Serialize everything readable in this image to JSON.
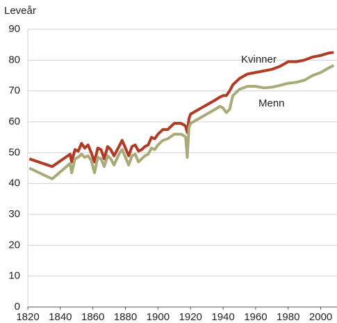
{
  "chart_data": {
    "type": "line",
    "y_label": "Leveår",
    "x": [
      1821,
      1835,
      1846,
      1847,
      1849,
      1851,
      1853,
      1855,
      1857,
      1859,
      1861,
      1863,
      1865,
      1867,
      1869,
      1871,
      1873,
      1876,
      1878,
      1880,
      1882,
      1884,
      1886,
      1888,
      1890,
      1892,
      1894,
      1896,
      1898,
      1900,
      1903,
      1906,
      1910,
      1914,
      1916,
      1917,
      1918,
      1919,
      1920,
      1925,
      1930,
      1935,
      1938,
      1940,
      1942,
      1944,
      1946,
      1950,
      1955,
      1960,
      1965,
      1970,
      1975,
      1980,
      1985,
      1990,
      1995,
      2000,
      2005,
      2008
    ],
    "series": [
      {
        "name": "Kvinner",
        "color": "#b03a24",
        "values": [
          48,
          45.5,
          49.5,
          47,
          51,
          50.5,
          53,
          51.5,
          52.5,
          50,
          47,
          51.5,
          51,
          48,
          52,
          51,
          49,
          52,
          54,
          51.5,
          49,
          52,
          52.5,
          50.5,
          51,
          52,
          52.5,
          55,
          54.5,
          56,
          57.5,
          57.5,
          59.5,
          59.5,
          59,
          58.5,
          56.5,
          61,
          62.5,
          64,
          65.5,
          67,
          68,
          68.5,
          68.5,
          70,
          72,
          74,
          75.5,
          76,
          76.5,
          77,
          78,
          79.5,
          79.5,
          80,
          81,
          81.5,
          82.3,
          82.5
        ]
      },
      {
        "name": "Menn",
        "color": "#a9aa78",
        "values": [
          45,
          41.5,
          46.5,
          43.5,
          48,
          48.5,
          49.5,
          48.5,
          49,
          47.5,
          43.5,
          48.5,
          48,
          45.5,
          49,
          48,
          46,
          49.5,
          51,
          48.5,
          46,
          49,
          49.5,
          47,
          48,
          49,
          49.5,
          51.5,
          51,
          52.5,
          54,
          54.5,
          56,
          56,
          55.5,
          55,
          48.5,
          58,
          59.5,
          61,
          62.5,
          64,
          65,
          64.5,
          63,
          64,
          68.5,
          70.5,
          71.5,
          71.5,
          71,
          71.2,
          71.8,
          72.5,
          72.8,
          73.5,
          75,
          76,
          77.5,
          78.3
        ]
      }
    ],
    "xlim": [
      1820,
      2010
    ],
    "xticks": [
      1820,
      1840,
      1860,
      1880,
      1900,
      1920,
      1940,
      1960,
      1980,
      2000
    ],
    "ylim": [
      0,
      90
    ],
    "yticks": [
      0,
      10,
      20,
      30,
      40,
      50,
      60,
      70,
      80,
      90
    ],
    "grid": true
  }
}
